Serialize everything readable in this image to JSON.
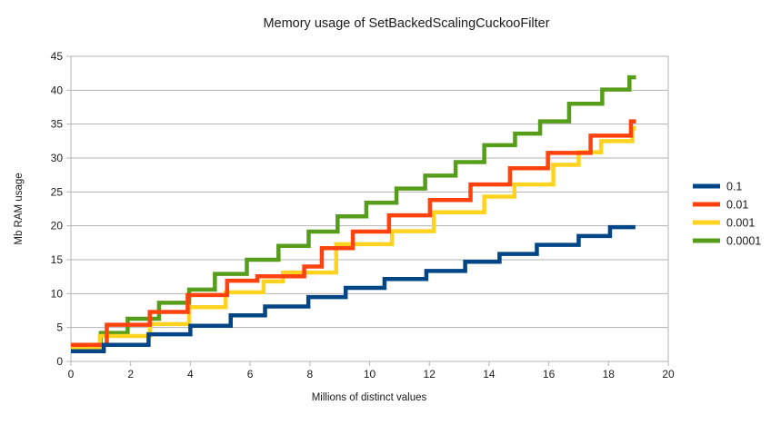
{
  "chart_data": {
    "type": "line",
    "line_style": "step-after",
    "title": "Memory usage of SetBackedScalingCuckooFilter",
    "xlabel": "Millions of distinct values",
    "ylabel": "Mb RAM usage",
    "xlim": [
      0,
      20
    ],
    "ylim": [
      0,
      45
    ],
    "x_ticks": [
      0,
      2,
      4,
      6,
      8,
      10,
      12,
      14,
      16,
      18,
      20
    ],
    "y_ticks": [
      0,
      5,
      10,
      15,
      20,
      25,
      30,
      35,
      40,
      45
    ],
    "grid": "horizontal-only",
    "grid_color": "#b3b3b3",
    "legend_position": "right",
    "series": [
      {
        "name": "0.1",
        "color": "#004586",
        "x_end": 18.9,
        "steps": [
          [
            0,
            1.5
          ],
          [
            1.1,
            2.45
          ],
          [
            2.6,
            4.0
          ],
          [
            4.0,
            5.25
          ],
          [
            5.35,
            6.8
          ],
          [
            6.5,
            8.1
          ],
          [
            7.95,
            9.5
          ],
          [
            9.2,
            10.85
          ],
          [
            10.5,
            12.15
          ],
          [
            11.9,
            13.35
          ],
          [
            13.2,
            14.7
          ],
          [
            14.35,
            15.85
          ],
          [
            15.6,
            17.2
          ],
          [
            17.0,
            18.5
          ],
          [
            18.05,
            19.8
          ]
        ]
      },
      {
        "name": "0.01",
        "color": "#ff420e",
        "x_end": 18.92,
        "steps": [
          [
            0,
            2.45
          ],
          [
            1.2,
            5.4
          ],
          [
            2.64,
            7.3
          ],
          [
            3.91,
            9.8
          ],
          [
            5.23,
            11.9
          ],
          [
            6.24,
            12.55
          ],
          [
            7.81,
            14.0
          ],
          [
            8.4,
            16.7
          ],
          [
            9.44,
            19.15
          ],
          [
            10.65,
            21.55
          ],
          [
            12.02,
            23.8
          ],
          [
            13.38,
            26.1
          ],
          [
            14.7,
            28.5
          ],
          [
            15.97,
            30.75
          ],
          [
            17.4,
            33.3
          ],
          [
            18.75,
            35.4
          ]
        ]
      },
      {
        "name": "0.001",
        "color": "#ffd320",
        "x_end": 18.92,
        "steps": [
          [
            0,
            2.1
          ],
          [
            0.97,
            3.75
          ],
          [
            2.64,
            5.5
          ],
          [
            3.96,
            8.0
          ],
          [
            5.18,
            10.2
          ],
          [
            6.45,
            11.8
          ],
          [
            7.1,
            13.1
          ],
          [
            8.88,
            17.3
          ],
          [
            10.75,
            19.2
          ],
          [
            12.15,
            22.0
          ],
          [
            13.84,
            24.3
          ],
          [
            14.85,
            26.1
          ],
          [
            16.15,
            29.0
          ],
          [
            17.0,
            30.85
          ],
          [
            17.75,
            32.5
          ],
          [
            18.8,
            34.4
          ]
        ]
      },
      {
        "name": "0.0001",
        "color": "#579d1c",
        "x_end": 18.92,
        "steps": [
          [
            0,
            2.3
          ],
          [
            1.0,
            4.2
          ],
          [
            1.9,
            6.3
          ],
          [
            2.95,
            8.65
          ],
          [
            3.96,
            10.6
          ],
          [
            4.82,
            12.9
          ],
          [
            5.89,
            15.0
          ],
          [
            6.95,
            17.05
          ],
          [
            7.96,
            19.15
          ],
          [
            8.93,
            21.4
          ],
          [
            9.89,
            23.4
          ],
          [
            10.9,
            25.5
          ],
          [
            11.86,
            27.4
          ],
          [
            12.88,
            29.4
          ],
          [
            13.84,
            31.9
          ],
          [
            14.87,
            33.6
          ],
          [
            15.71,
            35.4
          ],
          [
            16.68,
            38.0
          ],
          [
            17.79,
            40.1
          ],
          [
            18.7,
            41.9
          ]
        ]
      }
    ]
  }
}
